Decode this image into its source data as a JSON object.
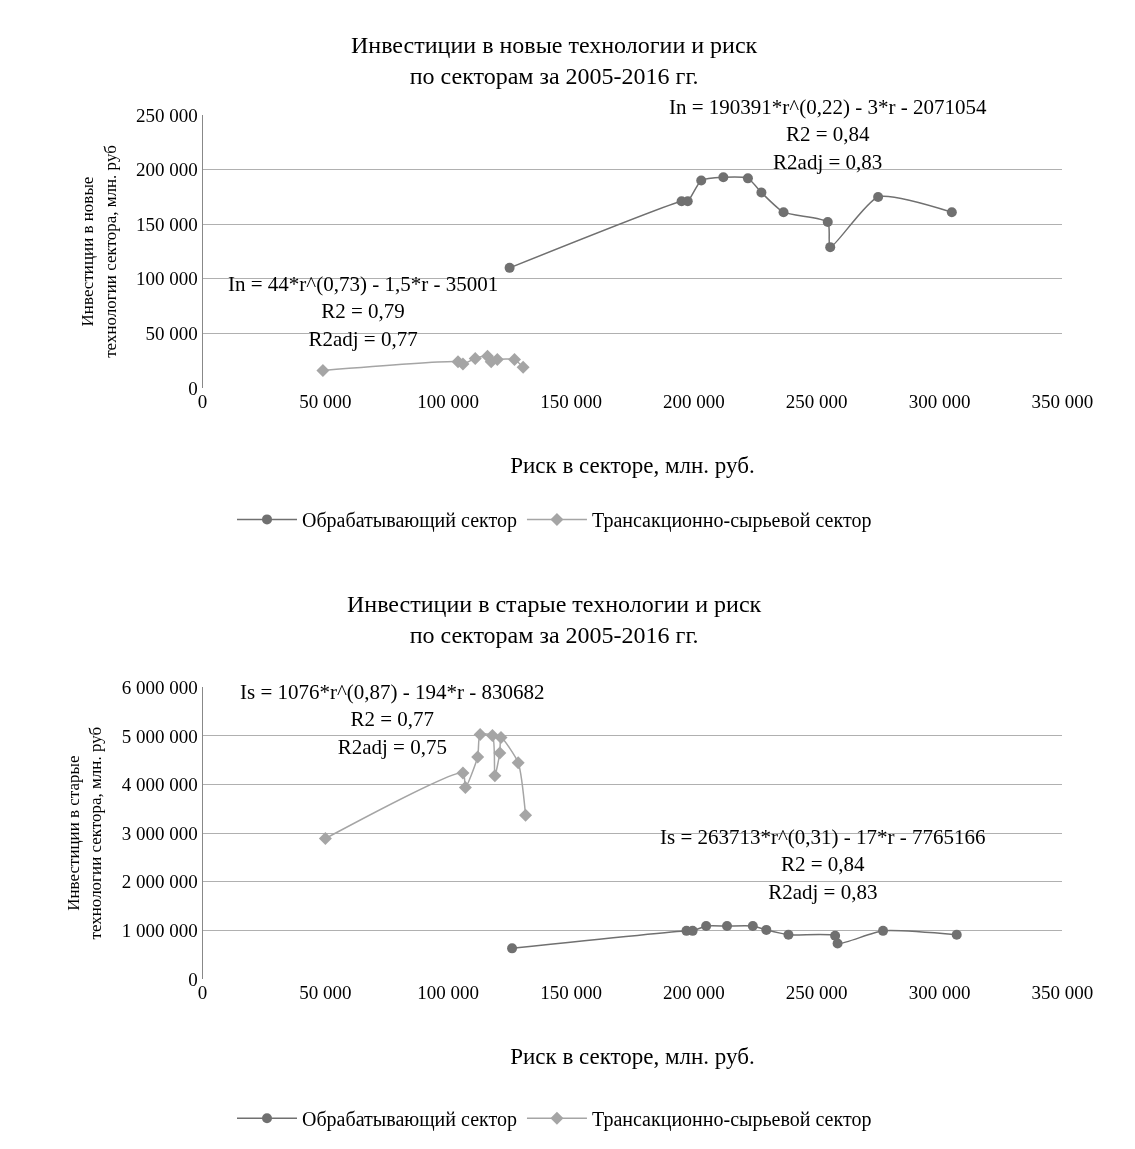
{
  "chart_data": [
    {
      "type": "line",
      "title": "Инвестиции в новые технологии и риск\nпо секторам за 2005-2016 гг.",
      "xlabel": "Риск в секторе, млн. руб.",
      "ylabel": "Инвестиции в новые\nтехнологии сектора, млн. руб",
      "xlim": [
        0,
        350000
      ],
      "xticks": [
        0,
        {
          "value": 50000,
          "label": "50 000"
        },
        {
          "value": 100000,
          "label": "100 000"
        },
        {
          "value": 150000,
          "label": "150 000"
        },
        {
          "value": 200000,
          "label": "200 000"
        },
        {
          "value": 250000,
          "label": "250 000"
        },
        {
          "value": 300000,
          "label": "300 000"
        },
        {
          "value": 350000,
          "label": "350 000"
        }
      ],
      "ylim": [
        0,
        250000
      ],
      "yticks": [
        0,
        {
          "value": 50000,
          "label": "50 000"
        },
        {
          "value": 100000,
          "label": "100 000"
        },
        {
          "value": 150000,
          "label": "150 000"
        },
        {
          "value": 200000,
          "label": "200 000"
        },
        {
          "value": 250000,
          "label": "250 000"
        }
      ],
      "grid": "y",
      "legend": "bottom",
      "series": [
        {
          "name": "Обрабатывающий сектор",
          "color": "#707070",
          "marker": "circle",
          "x": [
            125000,
            195000,
            197500,
            203000,
            212000,
            222000,
            227500,
            236500,
            254500,
            255500,
            275000,
            305000
          ],
          "values": [
            110000,
            171000,
            171000,
            190000,
            193000,
            192000,
            179000,
            161000,
            152000,
            129000,
            175000,
            161000
          ]
        },
        {
          "name": "Трансакционно-сырьевой сектор",
          "color": "#a5a5a5",
          "marker": "diamond",
          "x": [
            49000,
            104000,
            106000,
            111000,
            116000,
            117500,
            120000,
            127000,
            130500
          ],
          "values": [
            16000,
            24000,
            22000,
            27000,
            29000,
            24000,
            26000,
            26000,
            19000
          ]
        }
      ],
      "annotations": [
        "In = 44*r^(0,73) - 1,5*r - 35001\nR2 = 0,79\nR2adj = 0,77",
        "In = 190391*r^(0,22) - 3*r - 2071054\nR2 = 0,84\nR2adj = 0,83"
      ]
    },
    {
      "type": "line",
      "title": "Инвестиции в старые технологии и риск\nпо секторам за 2005-2016 гг.",
      "xlabel": "Риск в секторе, млн. руб.",
      "ylabel": "Инвестиции в старые\nтехнологии сектора, млн. руб",
      "xlim": [
        0,
        350000
      ],
      "xticks": [
        0,
        {
          "value": 50000,
          "label": "50 000"
        },
        {
          "value": 100000,
          "label": "100 000"
        },
        {
          "value": 150000,
          "label": "150 000"
        },
        {
          "value": 200000,
          "label": "200 000"
        },
        {
          "value": 250000,
          "label": "250 000"
        },
        {
          "value": 300000,
          "label": "300 000"
        },
        {
          "value": 350000,
          "label": "350 000"
        }
      ],
      "ylim": [
        0,
        6000000
      ],
      "yticks": [
        0,
        {
          "value": 1000000,
          "label": "1 000 000"
        },
        {
          "value": 2000000,
          "label": "2 000 000"
        },
        {
          "value": 3000000,
          "label": "3 000 000"
        },
        {
          "value": 4000000,
          "label": "4 000 000"
        },
        {
          "value": 5000000,
          "label": "5 000 000"
        },
        {
          "value": 6000000,
          "label": "6 000 000"
        }
      ],
      "grid": "y",
      "legend": "bottom",
      "series": [
        {
          "name": "Обрабатывающий сектор",
          "color": "#707070",
          "marker": "circle",
          "x": [
            126000,
            197000,
            199500,
            205000,
            213500,
            224000,
            229500,
            238500,
            257500,
            258500,
            277000,
            307000
          ],
          "values": [
            630000,
            990000,
            990000,
            1090000,
            1090000,
            1090000,
            1010000,
            910000,
            890000,
            730000,
            990000,
            910000
          ]
        },
        {
          "name": "Трансакционно-сырьевой сектор",
          "color": "#a5a5a5",
          "marker": "diamond",
          "x": [
            50000,
            106000,
            107000,
            112000,
            113000,
            118000,
            119000,
            121000,
            121500,
            128500,
            131500
          ],
          "values": [
            2890000,
            4240000,
            3940000,
            4570000,
            5030000,
            5010000,
            4180000,
            4650000,
            4970000,
            4450000,
            3370000
          ]
        }
      ],
      "annotations": [
        "Is = 1076*r^(0,87) - 194*r - 830682\nR2 = 0,77\nR2adj = 0,75",
        "Is = 263713*r^(0,31) - 17*r - 7765166\nR2 = 0,84\nR2adj = 0,83"
      ]
    }
  ]
}
